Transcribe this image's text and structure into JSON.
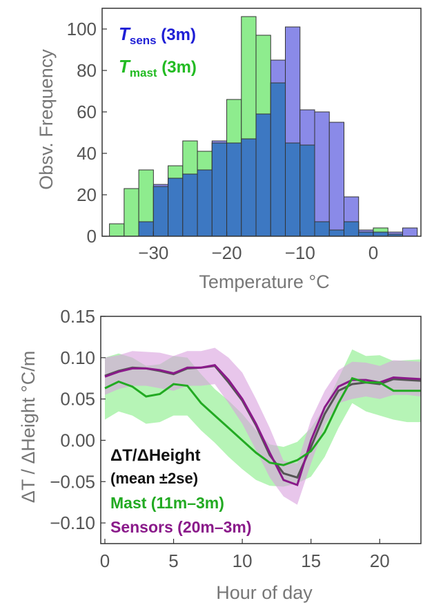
{
  "chart_data": [
    {
      "type": "bar",
      "xlabel": "Temperature °C",
      "ylabel": "Obsv. Frequency",
      "xlim": [
        -37,
        6.5
      ],
      "ylim": [
        0,
        110
      ],
      "xticks": [
        -30,
        -20,
        -10,
        0
      ],
      "yticks": [
        0,
        20,
        40,
        60,
        80,
        100
      ],
      "x_tick_labels": [
        "−30",
        "−20",
        "−10",
        "0"
      ],
      "y_tick_labels": [
        "0",
        "20",
        "40",
        "60",
        "80",
        "100"
      ],
      "bin_width": 2,
      "bin_starts": [
        -36,
        -34,
        -32,
        -30,
        -28,
        -26,
        -24,
        -22,
        -20,
        -18,
        -16,
        -14,
        -12,
        -10,
        -8,
        -6,
        -4,
        -2,
        0,
        2,
        4
      ],
      "overlap_color": "#3d78c2",
      "legend": [
        {
          "sym": "T",
          "sub": "sens",
          "rest": " (3m)",
          "color": "#1f1fd6"
        },
        {
          "sym": "T",
          "sub": "mast",
          "rest": " (3m)",
          "color": "#22bb22"
        }
      ],
      "series": [
        {
          "name": "Tsens (3m)",
          "color": "#8a8ae8",
          "values": [
            0,
            0,
            7,
            25,
            28,
            30,
            32,
            46,
            45,
            47,
            59,
            85,
            101,
            61,
            60,
            55,
            19,
            3,
            2,
            2,
            4
          ]
        },
        {
          "name": "Tmast (3m)",
          "color": "#8eec8e",
          "values": [
            6,
            23,
            32,
            24,
            34,
            46,
            41,
            45,
            66,
            106,
            97,
            74,
            45,
            44,
            7,
            3,
            7,
            2,
            4,
            1,
            0
          ]
        }
      ]
    },
    {
      "type": "line",
      "xlabel": "Hour of day",
      "ylabel": "ΔT / ΔHeight °C/m",
      "xlim": [
        -0.3,
        23
      ],
      "ylim": [
        -0.125,
        0.15
      ],
      "xticks": [
        0,
        5,
        10,
        15,
        20
      ],
      "yticks": [
        -0.1,
        -0.05,
        0.0,
        0.05,
        0.1,
        0.15
      ],
      "x_tick_labels": [
        "0",
        "5",
        "10",
        "15",
        "20"
      ],
      "y_tick_labels": [
        "−0.10",
        "−0.05",
        "0.00",
        "0.05",
        "0.10",
        "0.15"
      ],
      "legend_title": [
        "ΔT/ΔHeight",
        "(mean ±2se)"
      ],
      "x": [
        0,
        1,
        2,
        3,
        4,
        5,
        6,
        7,
        8,
        9,
        10,
        11,
        12,
        13,
        14,
        15,
        16,
        17,
        18,
        19,
        20,
        21,
        22,
        23
      ],
      "series": [
        {
          "name": "Mast (11m–3m)",
          "color": "#22aa22",
          "band_color": "#9ef09e",
          "values": [
            0.063,
            0.071,
            0.065,
            0.053,
            0.056,
            0.068,
            0.066,
            0.045,
            0.03,
            0.015,
            0.0,
            -0.015,
            -0.027,
            -0.03,
            -0.024,
            -0.013,
            0.01,
            0.045,
            0.075,
            0.07,
            0.07,
            0.06,
            0.06,
            0.06
          ],
          "lower": [
            0.025,
            0.035,
            0.03,
            0.02,
            0.022,
            0.03,
            0.03,
            0.012,
            -0.003,
            -0.02,
            -0.035,
            -0.048,
            -0.055,
            -0.056,
            -0.052,
            -0.044,
            -0.02,
            0.015,
            0.045,
            0.035,
            0.03,
            0.025,
            0.022,
            0.022
          ],
          "upper": [
            0.1,
            0.105,
            0.1,
            0.09,
            0.092,
            0.102,
            0.1,
            0.08,
            0.062,
            0.048,
            0.032,
            0.012,
            -0.005,
            -0.008,
            -0.002,
            0.015,
            0.04,
            0.075,
            0.11,
            0.102,
            0.103,
            0.096,
            0.097,
            0.098
          ]
        },
        {
          "name": "Sensors (20m–3m)",
          "color": "#8a1a8a",
          "band_color": "#d9a0de",
          "values": [
            0.077,
            0.083,
            0.087,
            0.087,
            0.085,
            0.081,
            0.088,
            0.088,
            0.091,
            0.073,
            0.05,
            0.02,
            -0.015,
            -0.048,
            -0.054,
            0.0,
            0.04,
            0.065,
            0.073,
            0.073,
            0.07,
            0.076,
            0.075,
            0.074
          ],
          "lower": [
            0.055,
            0.062,
            0.066,
            0.066,
            0.063,
            0.06,
            0.066,
            0.066,
            0.068,
            0.045,
            0.02,
            -0.012,
            -0.045,
            -0.068,
            -0.078,
            -0.028,
            0.018,
            0.045,
            0.05,
            0.053,
            0.05,
            0.055,
            0.055,
            0.053
          ],
          "upper": [
            0.1,
            0.103,
            0.108,
            0.107,
            0.106,
            0.102,
            0.108,
            0.108,
            0.112,
            0.1,
            0.082,
            0.05,
            0.015,
            -0.025,
            -0.028,
            0.025,
            0.06,
            0.085,
            0.095,
            0.094,
            0.09,
            0.097,
            0.096,
            0.095
          ]
        }
      ],
      "mean_line": {
        "color": "#555555",
        "values": [
          0.078,
          0.084,
          0.088,
          0.087,
          0.084,
          0.08,
          0.087,
          0.088,
          0.09,
          0.07,
          0.048,
          0.018,
          -0.018,
          -0.04,
          -0.045,
          -0.008,
          0.032,
          0.06,
          0.068,
          0.07,
          0.068,
          0.074,
          0.073,
          0.072
        ]
      }
    }
  ]
}
